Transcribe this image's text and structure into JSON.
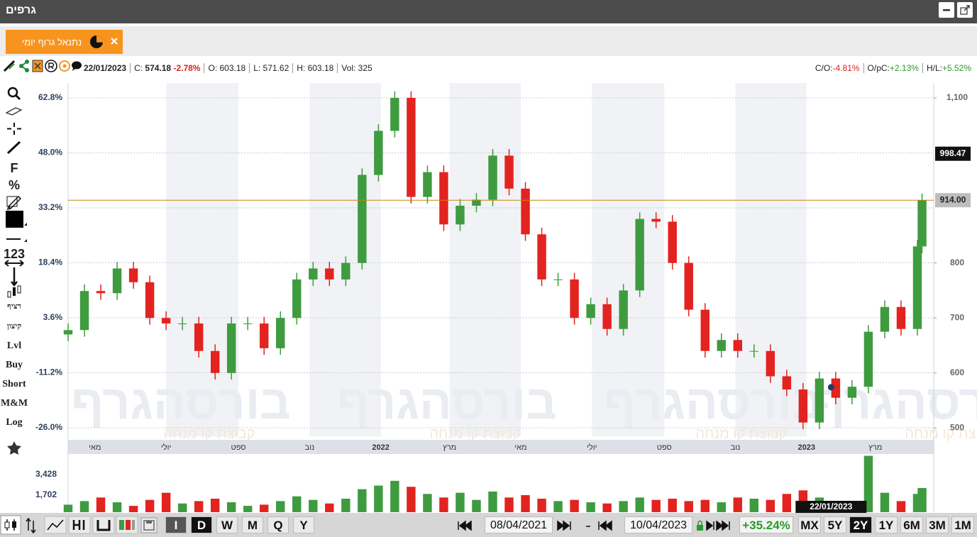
{
  "header": {
    "title": "גרפים"
  },
  "tab": {
    "title": "נתנאל גרוף יומי"
  },
  "info": {
    "date": "22/01/2023",
    "close_label": "C:",
    "close": 574.18,
    "change": "-2.78%",
    "open": "O: 603.18",
    "low": "L: 571.62",
    "high": "H: 603.18",
    "volume": "Vol: 325",
    "co_label": "C/O:",
    "co": "-4.81%",
    "opc_label": "O/pC:",
    "opc": "+2.13%",
    "hl_label": "H/L:",
    "hl": "+5.52%"
  },
  "left_tools": [
    "F",
    "%",
    "123",
    "רציף",
    "קיצון",
    "Lvl",
    "Buy",
    "Short",
    "M&M",
    "Log"
  ],
  "toolbar": {
    "periods": [
      "I",
      "D",
      "W",
      "M",
      "Q",
      "Y"
    ],
    "active_period": 1,
    "from": "08/04/2021",
    "to": "10/04/2023",
    "change": "+35.24%",
    "ranges": [
      "MX",
      "5Y",
      "2Y",
      "1Y",
      "6M",
      "3M",
      "1M"
    ],
    "active_range": 2
  },
  "watermark": {
    "title": "בורסהגרף",
    "subtitle": "קבוצת קו מנחה"
  },
  "chart_data": {
    "type": "candlestick",
    "x": [
      "2021-04-08",
      "2021-04-22",
      "2021-05-06",
      "2021-05-20",
      "2021-06-03",
      "2021-06-17",
      "2021-07-01",
      "2021-07-15",
      "2021-07-29",
      "2021-08-12",
      "2021-08-26",
      "2021-09-09",
      "2021-09-23",
      "2021-10-07",
      "2021-10-21",
      "2021-11-04",
      "2021-11-18",
      "2021-12-02",
      "2021-12-16",
      "2021-12-30",
      "2022-01-13",
      "2022-01-27",
      "2022-02-10",
      "2022-02-24",
      "2022-03-10",
      "2022-03-24",
      "2022-04-07",
      "2022-04-21",
      "2022-05-05",
      "2022-05-19",
      "2022-06-02",
      "2022-06-16",
      "2022-06-30",
      "2022-07-14",
      "2022-07-28",
      "2022-08-11",
      "2022-08-25",
      "2022-09-08",
      "2022-09-22",
      "2022-10-06",
      "2022-10-20",
      "2022-11-03",
      "2022-11-17",
      "2022-12-01",
      "2022-12-15",
      "2022-12-29",
      "2023-01-12",
      "2023-01-26",
      "2023-02-09",
      "2023-02-23",
      "2023-03-09",
      "2023-03-23",
      "2023-04-06",
      "2023-04-10"
    ],
    "open": [
      670,
      678,
      749,
      745,
      790,
      765,
      700,
      690,
      690,
      640,
      600,
      690,
      690,
      645,
      700,
      770,
      790,
      770,
      800,
      960,
      1040,
      1100,
      920,
      965,
      870,
      904,
      915,
      995,
      935,
      852,
      770,
      770,
      700,
      725,
      680,
      750,
      880,
      875,
      800,
      715,
      640,
      660,
      640,
      640,
      594,
      570,
      510,
      590,
      555,
      575,
      675,
      720,
      680,
      830
    ],
    "high": [
      690,
      761,
      761,
      802,
      802,
      777,
      712,
      702,
      702,
      652,
      702,
      702,
      702,
      712,
      782,
      802,
      802,
      812,
      972,
      1052,
      1112,
      1112,
      977,
      977,
      916,
      927,
      1007,
      1007,
      947,
      864,
      782,
      782,
      737,
      737,
      762,
      892,
      892,
      887,
      812,
      727,
      672,
      672,
      652,
      652,
      606,
      582,
      602,
      602,
      587,
      687,
      732,
      732,
      842,
      926
    ],
    "low": [
      658,
      666,
      733,
      733,
      753,
      688,
      678,
      678,
      628,
      588,
      588,
      678,
      633,
      633,
      688,
      758,
      758,
      758,
      788,
      948,
      1028,
      908,
      908,
      858,
      858,
      892,
      903,
      923,
      840,
      758,
      758,
      688,
      688,
      668,
      668,
      738,
      863,
      788,
      703,
      628,
      628,
      628,
      628,
      582,
      558,
      498,
      498,
      543,
      543,
      563,
      663,
      668,
      668,
      818
    ],
    "close": [
      678,
      749,
      745,
      790,
      765,
      700,
      690,
      690,
      640,
      600,
      690,
      690,
      645,
      700,
      770,
      790,
      770,
      800,
      960,
      1040,
      1100,
      920,
      965,
      870,
      904,
      915,
      995,
      935,
      852,
      770,
      770,
      700,
      725,
      680,
      750,
      880,
      875,
      800,
      715,
      640,
      660,
      640,
      640,
      594,
      570,
      510,
      590,
      555,
      575,
      675,
      720,
      680,
      830,
      914
    ],
    "up_color": "#3f9b3f",
    "down_color": "#e3231f",
    "xlim": [
      "2021-04-08",
      "2023-04-20"
    ],
    "xticks": [
      {
        "value": "2021-05-01",
        "label": "מאי"
      },
      {
        "value": "2021-07-01",
        "label": "יולי"
      },
      {
        "value": "2021-09-01",
        "label": "ספט"
      },
      {
        "value": "2021-11-01",
        "label": "נוב"
      },
      {
        "value": "2022-01-01",
        "label": "2022"
      },
      {
        "value": "2022-03-01",
        "label": "מרץ"
      },
      {
        "value": "2022-05-01",
        "label": "מאי"
      },
      {
        "value": "2022-07-01",
        "label": "יולי"
      },
      {
        "value": "2022-09-01",
        "label": "ספט"
      },
      {
        "value": "2022-11-01",
        "label": "נוב"
      },
      {
        "value": "2023-01-01",
        "label": "2023"
      },
      {
        "value": "2023-03-01",
        "label": "מרץ"
      }
    ],
    "ylim": [
      485,
      1127
    ],
    "yticks": [
      500,
      600,
      700,
      800,
      {
        "value": 1100,
        "label": "1,100"
      }
    ],
    "y2lim": [
      -28.3,
      66.8
    ],
    "y2ticks": [
      {
        "value": 62.8,
        "label": "62.8%"
      },
      {
        "value": 48.0,
        "label": "48.0%"
      },
      {
        "value": 33.2,
        "label": "33.2%"
      },
      {
        "value": 18.4,
        "label": "18.4%"
      },
      {
        "value": 3.6,
        "label": "3.6%"
      },
      {
        "value": -11.2,
        "label": "-11.2%"
      },
      {
        "value": -26.0,
        "label": "-26.0%"
      }
    ],
    "grid": true,
    "markers": [
      {
        "value": 998.47,
        "color": "#111111"
      },
      {
        "value": 914,
        "label": "914.00",
        "color": "#bdbdbd",
        "line_color": "#c8860f"
      }
    ],
    "volume": {
      "values": [
        900,
        1200,
        1500,
        1100,
        800,
        1300,
        1900,
        1000,
        1200,
        1400,
        1100,
        800,
        900,
        1200,
        1600,
        1300,
        1000,
        1400,
        2200,
        2500,
        2900,
        2400,
        1800,
        1500,
        1900,
        1300,
        2000,
        1500,
        1700,
        1400,
        1200,
        1300,
        1100,
        1000,
        1200,
        1500,
        1300,
        1400,
        1200,
        1300,
        1100,
        1500,
        1400,
        1300,
        1800,
        2100,
        1500,
        1200,
        1100,
        5000,
        1900,
        1200,
        1800,
        2300
      ],
      "ylim": [
        270,
        5150
      ],
      "yticks": [
        {
          "value": 3428,
          "label": "3,428"
        },
        {
          "value": 1702,
          "label": "1,702"
        }
      ]
    }
  }
}
